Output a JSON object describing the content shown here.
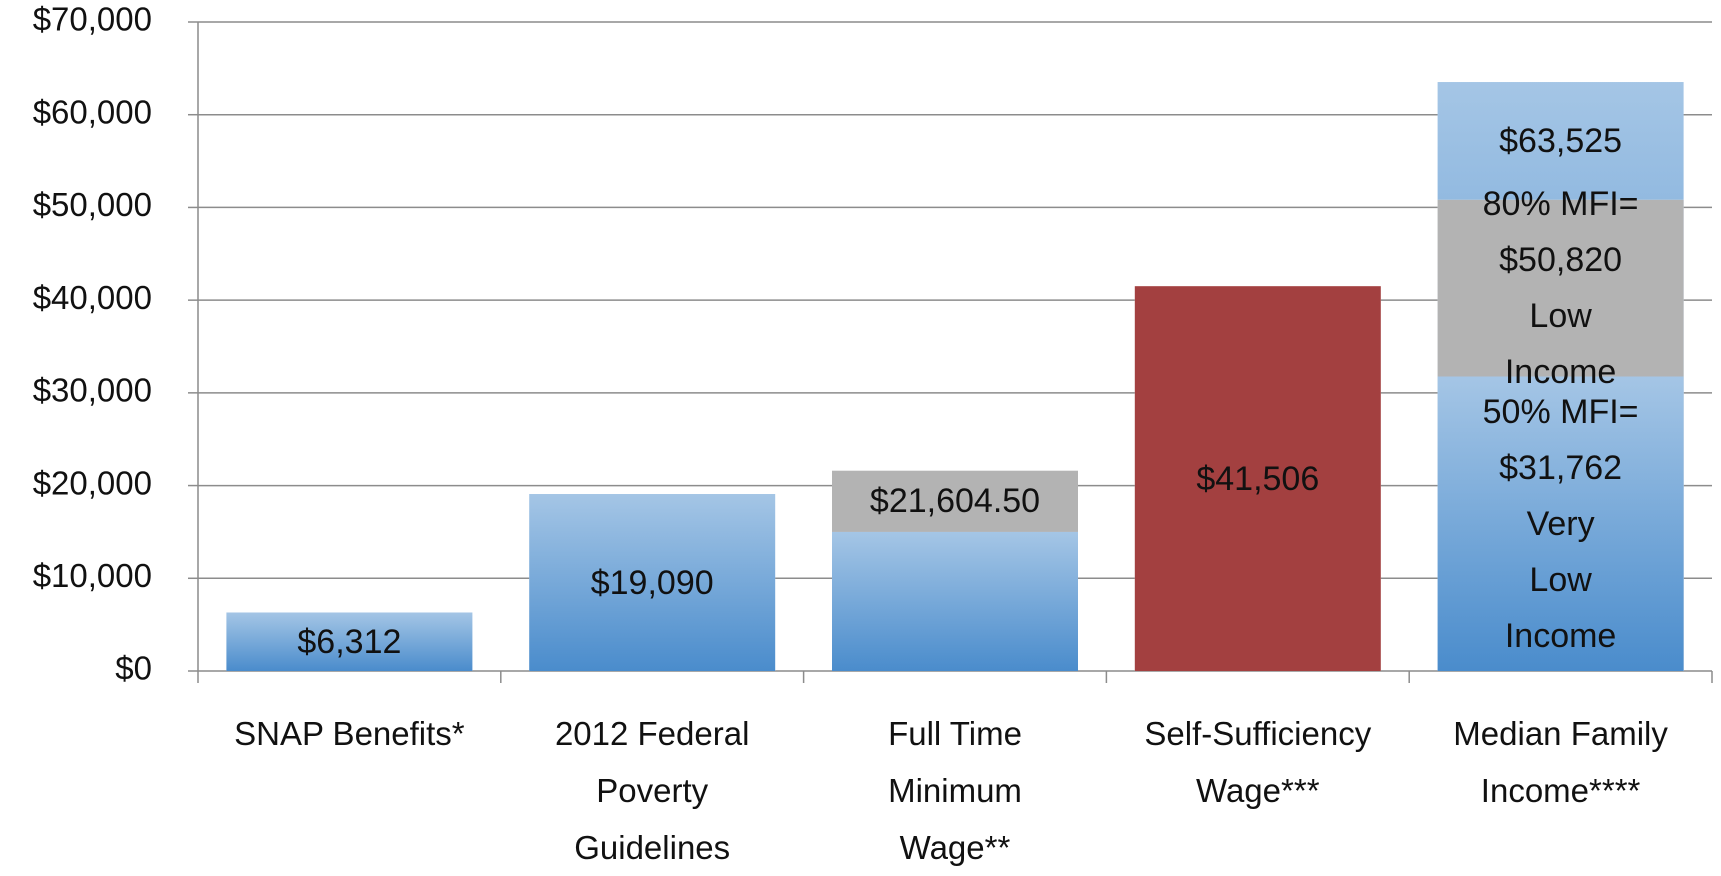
{
  "chart_data": {
    "type": "bar",
    "categories": [
      "SNAP Benefits*",
      "2012 Federal\nPoverty\nGuidelines",
      "Full Time\nMinimum\nWage**",
      "Self-Sufficiency\nWage***",
      "Median Family\nIncome****"
    ],
    "series": [
      {
        "color": "#4a8ccc",
        "values": [
          null,
          null,
          null,
          null,
          63525
        ],
        "value_labels": [
          null,
          null,
          null,
          null,
          "$63,525"
        ]
      },
      {
        "color": "#b3b3b3",
        "values": [
          null,
          null,
          21604.5,
          null,
          50820
        ],
        "value_labels": [
          null,
          null,
          "$21,604.50",
          null,
          "80% MFI=\n$50,820\nLow Income"
        ]
      },
      {
        "color": "#4a8ccc",
        "values": [
          6312,
          19090,
          15000,
          null,
          31762
        ],
        "value_labels": [
          "$6,312",
          "$19,090",
          null,
          null,
          "50% MFI=\n$31,762\nVery\nLow Income"
        ]
      },
      {
        "color": "#a34040",
        "values": [
          null,
          null,
          null,
          41506,
          null
        ],
        "value_labels": [
          null,
          null,
          null,
          "$41,506",
          null
        ]
      }
    ],
    "ylim": [
      0,
      70000
    ],
    "yticks": [
      {
        "value": 0,
        "label": "$0"
      },
      {
        "value": 10000,
        "label": "$10,000"
      },
      {
        "value": 20000,
        "label": "$20,000"
      },
      {
        "value": 30000,
        "label": "$30,000"
      },
      {
        "value": 40000,
        "label": "$40,000"
      },
      {
        "value": 50000,
        "label": "$50,000"
      },
      {
        "value": 60000,
        "label": "$60,000"
      },
      {
        "value": 70000,
        "label": "$70,000"
      }
    ],
    "grid": true
  }
}
